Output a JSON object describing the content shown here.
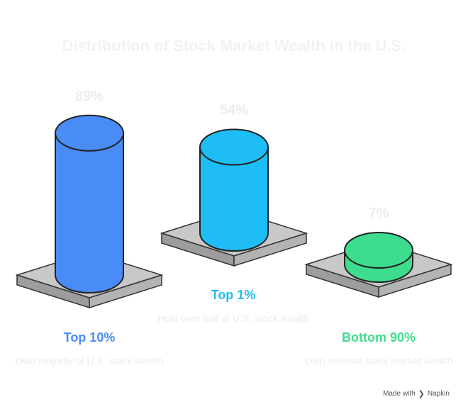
{
  "chart_data": {
    "type": "bar",
    "title": "Distribution of Stock Market Wealth in the U.S.",
    "categories": [
      "Top 10%",
      "Top 1%",
      "Bottom 90%"
    ],
    "values": [
      89,
      54,
      7
    ],
    "value_labels": [
      "89%",
      "54%",
      "7%"
    ],
    "descriptions": [
      "Own majority of U.S. stock wealth",
      "Hold over half of U.S. stock wealth",
      "Own minimal stock market wealth"
    ],
    "colors": [
      "#4a8cf7",
      "#1fbdf6",
      "#3ddc8e"
    ]
  },
  "footer": {
    "made_with": "Made with",
    "brand": "Napkin",
    "icon": "napkin-logo-icon"
  }
}
